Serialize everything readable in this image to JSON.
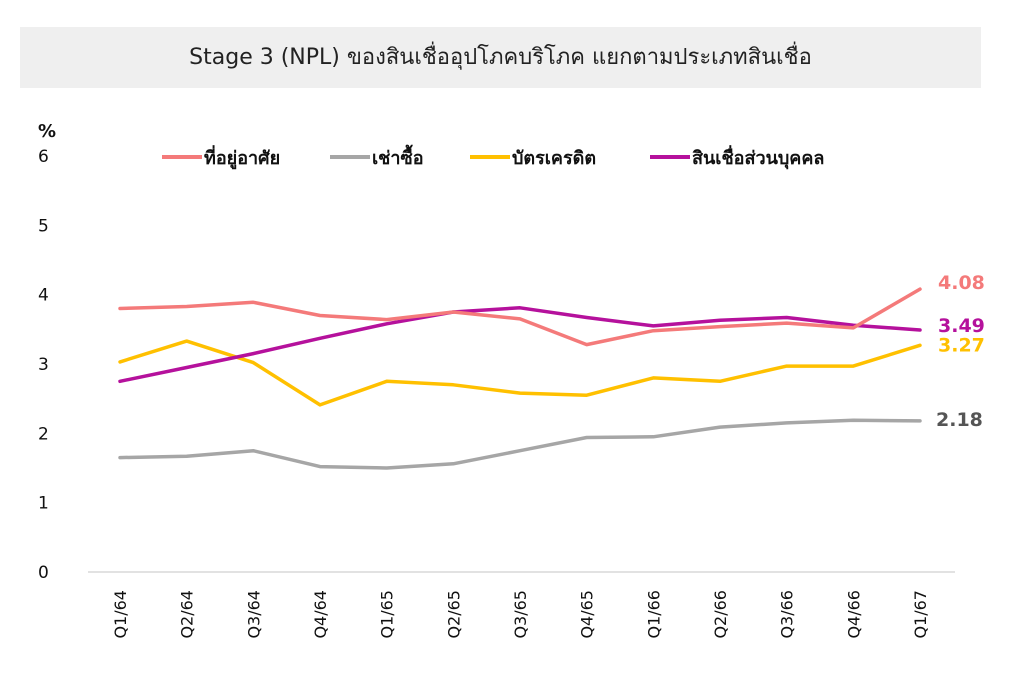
{
  "chart_data": {
    "type": "line",
    "title": "Stage 3 (NPL) ของสินเชื่ออุปโภคบริโภค แยกตามประเภทสินเชื่อ",
    "ylabel": "%",
    "ylim": [
      0,
      6
    ],
    "yticks": [
      "0",
      "1",
      "2",
      "3",
      "4",
      "5",
      "6"
    ],
    "categories": [
      "Q1/64",
      "Q2/64",
      "Q3/64",
      "Q4/64",
      "Q1/65",
      "Q2/65",
      "Q3/65",
      "Q4/65",
      "Q1/66",
      "Q2/66",
      "Q3/66",
      "Q4/66",
      "Q1/67"
    ],
    "legend_position": "top",
    "grid": false,
    "series": [
      {
        "name": "ที่อยู่อาศัย",
        "color": "#f47a7a",
        "end_label": "4.08",
        "values": [
          3.8,
          3.83,
          3.89,
          3.7,
          3.64,
          3.75,
          3.65,
          3.28,
          3.48,
          3.54,
          3.59,
          3.52,
          4.08
        ]
      },
      {
        "name": "เช่าซื้อ",
        "color": "#a6a6a6",
        "end_label": "2.18",
        "values": [
          1.65,
          1.67,
          1.75,
          1.52,
          1.5,
          1.56,
          1.75,
          1.94,
          1.95,
          2.09,
          2.15,
          2.19,
          2.18
        ]
      },
      {
        "name": "บัตรเครดิต",
        "color": "#ffc000",
        "end_label": "3.27",
        "values": [
          3.03,
          3.33,
          3.02,
          2.41,
          2.75,
          2.7,
          2.58,
          2.55,
          2.8,
          2.75,
          2.97,
          2.97,
          3.27
        ]
      },
      {
        "name": "สินเชื่อส่วนบุคคล",
        "color": "#b5119c",
        "end_label": "3.49",
        "values": [
          2.75,
          2.95,
          3.15,
          3.37,
          3.58,
          3.75,
          3.81,
          3.67,
          3.55,
          3.63,
          3.67,
          3.56,
          3.49
        ]
      }
    ]
  }
}
